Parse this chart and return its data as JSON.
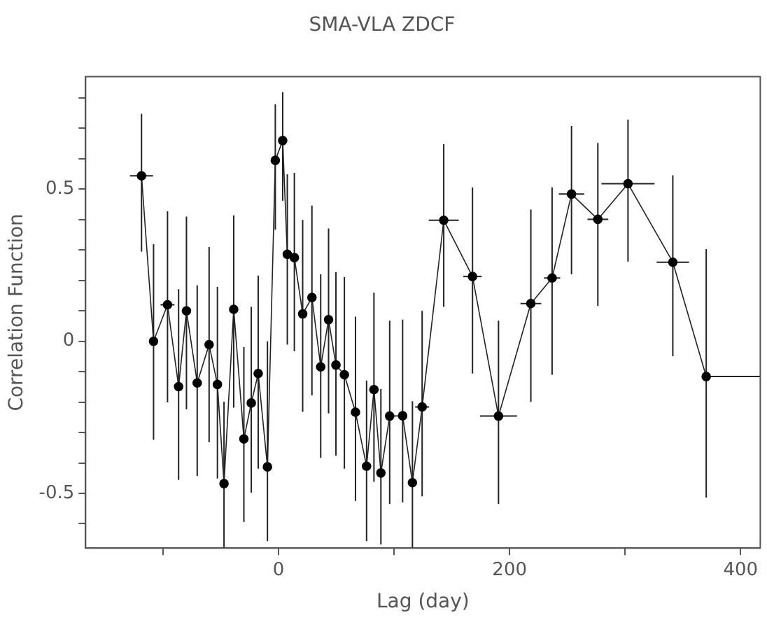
{
  "chart_data": {
    "type": "line",
    "title": "SMA-VLA ZDCF",
    "xlabel": "Lag (day)",
    "ylabel": "Correlation Function",
    "xlim": [
      -167,
      417
    ],
    "ylim": [
      -0.68,
      0.87
    ],
    "xticks": [
      {
        "value": -100,
        "label": null
      },
      0,
      {
        "value": 100,
        "label": null
      },
      200,
      {
        "value": 300,
        "label": null
      },
      400
    ],
    "yticks": [
      {
        "value": -0.6,
        "label": null
      },
      -0.5,
      {
        "value": -0.4,
        "label": null
      },
      {
        "value": -0.3,
        "label": null
      },
      {
        "value": -0.2,
        "label": null
      },
      {
        "value": -0.1,
        "label": null
      },
      0,
      {
        "value": 0.1,
        "label": null
      },
      {
        "value": 0.2,
        "label": null
      },
      {
        "value": 0.3,
        "label": null
      },
      {
        "value": 0.4,
        "label": null
      },
      0.5,
      {
        "value": 0.6,
        "label": null
      },
      {
        "value": 0.7,
        "label": null
      },
      {
        "value": 0.8,
        "label": null
      }
    ],
    "grid": false,
    "legend": false,
    "marker": "circle",
    "line_style": "solid",
    "series": [
      {
        "color": "#222222",
        "x": [
          -118.6,
          -108.2,
          -96.1,
          -86.5,
          -79.7,
          -70.4,
          -60.1,
          -52.9,
          -47.2,
          -38.8,
          -30.0,
          -23.6,
          -17.6,
          -9.6,
          -2.8,
          3.6,
          7.6,
          13.7,
          20.9,
          28.9,
          36.5,
          43.3,
          49.7,
          57.0,
          66.6,
          76.2,
          82.6,
          88.6,
          96.2,
          107.4,
          115.9,
          124.3,
          143.0,
          167.9,
          190.4,
          218.4,
          236.8,
          253.6,
          276.4,
          302.5,
          341.3,
          370.2
        ],
        "values": [
          0.544,
          0.0,
          0.12,
          -0.149,
          0.1,
          -0.137,
          -0.011,
          -0.142,
          -0.468,
          0.105,
          -0.321,
          -0.203,
          -0.106,
          -0.413,
          0.595,
          0.66,
          0.286,
          0.275,
          0.09,
          0.144,
          -0.084,
          0.071,
          -0.078,
          -0.11,
          -0.233,
          -0.411,
          -0.159,
          -0.433,
          -0.246,
          -0.245,
          -0.465,
          -0.216,
          0.398,
          0.213,
          -0.246,
          0.124,
          0.208,
          0.484,
          0.401,
          0.518,
          0.26,
          -0.116
        ],
        "errors": [
          [
            0.295,
            0.748
          ],
          [
            -0.324,
            0.319
          ],
          [
            -0.201,
            0.427
          ],
          [
            -0.456,
            0.171
          ],
          [
            -0.224,
            0.41
          ],
          [
            -0.443,
            0.184
          ],
          [
            -0.332,
            0.31
          ],
          [
            -0.451,
            0.179
          ],
          [
            -0.68,
            -0.199
          ],
          [
            -0.218,
            0.414
          ],
          [
            -0.594,
            -0.019
          ],
          [
            -0.498,
            0.113
          ],
          [
            -0.419,
            0.216
          ],
          [
            -0.657,
            0.0
          ],
          [
            0.367,
            0.779
          ],
          [
            0.462,
            0.819
          ],
          [
            -0.011,
            0.549
          ],
          [
            -0.033,
            0.554
          ],
          [
            -0.232,
            0.399
          ],
          [
            -0.178,
            0.446
          ],
          [
            -0.383,
            0.22
          ],
          [
            -0.237,
            0.371
          ],
          [
            -0.376,
            0.227
          ],
          [
            -0.419,
            0.211
          ],
          [
            -0.525,
            0.081
          ],
          [
            -0.657,
            -0.129
          ],
          [
            -0.462,
            0.16
          ],
          [
            -0.668,
            -0.157
          ],
          [
            -0.535,
            0.068
          ],
          [
            -0.53,
            0.071
          ],
          [
            -0.68,
            -0.197
          ],
          [
            -0.51,
            0.1
          ],
          [
            0.113,
            0.648
          ],
          [
            -0.106,
            0.506
          ],
          [
            -0.535,
            0.068
          ],
          [
            -0.199,
            0.433
          ],
          [
            -0.11,
            0.506
          ],
          [
            0.22,
            0.708
          ],
          [
            0.116,
            0.652
          ],
          [
            0.262,
            0.729
          ],
          [
            -0.049,
            0.546
          ],
          [
            -0.514,
            0.303
          ]
        ],
        "xerrors": [
          10,
          null,
          6,
          null,
          null,
          null,
          null,
          null,
          null,
          null,
          null,
          null,
          null,
          null,
          null,
          null,
          null,
          null,
          null,
          null,
          null,
          null,
          null,
          null,
          null,
          null,
          null,
          null,
          null,
          null,
          null,
          6,
          13,
          8,
          16,
          9,
          7,
          11,
          9,
          23,
          14,
          [
            370.2,
            417
          ]
        ]
      }
    ]
  }
}
